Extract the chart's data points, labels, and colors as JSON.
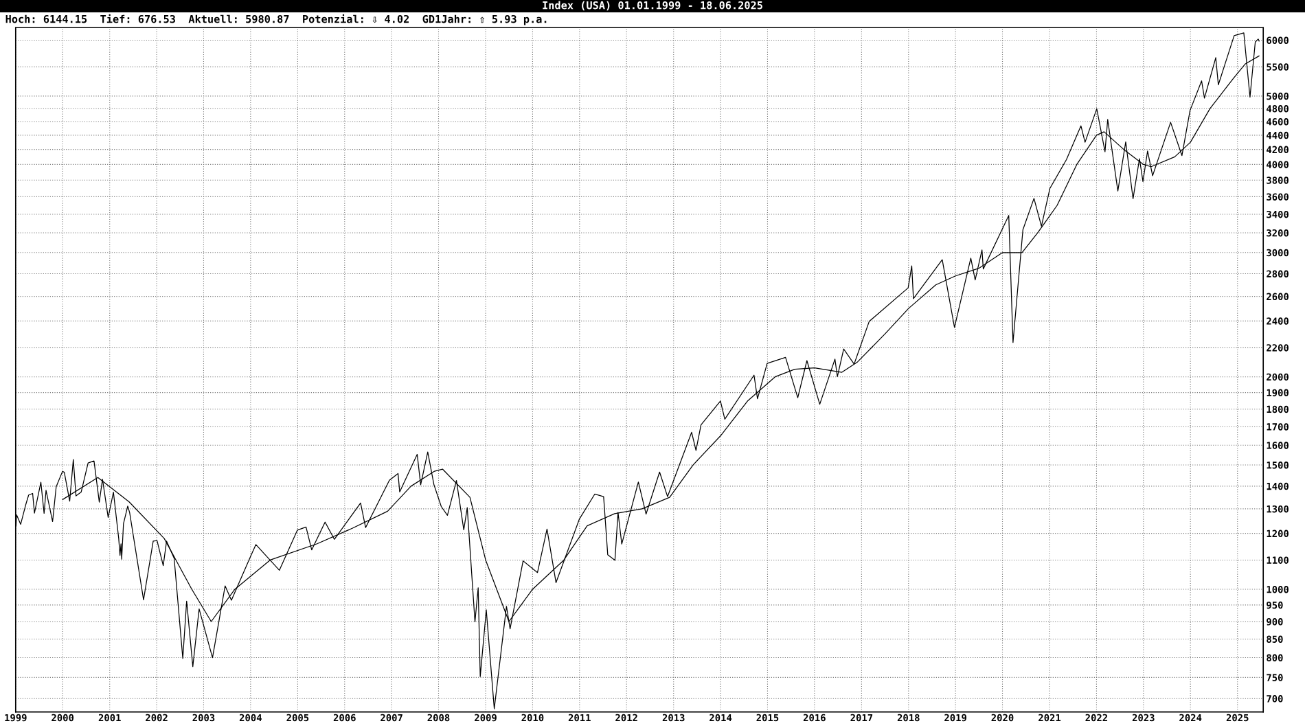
{
  "chart_data": {
    "type": "line",
    "title": "Index (USA) 01.01.1999 - 18.06.2025",
    "annotations": [
      "Hoch: 6144.15  Tief: 676.53  Aktuell: 5980.87  Potenzial: ⇩ 4.02  GD1Jahr: ⇧ 5.93 p.a."
    ],
    "log": "y",
    "grid": true,
    "line_style": "solid",
    "marker": "none",
    "xlim": [
      "1999-01-01",
      "2025-07-20"
    ],
    "xticks": [
      {
        "value": "1999-01-01",
        "label": "1999"
      },
      {
        "value": "2000-01-01",
        "label": "2000"
      },
      {
        "value": "2001-01-01",
        "label": "2001"
      },
      {
        "value": "2002-01-01",
        "label": "2002"
      },
      {
        "value": "2003-01-01",
        "label": "2003"
      },
      {
        "value": "2004-01-01",
        "label": "2004"
      },
      {
        "value": "2005-01-01",
        "label": "2005"
      },
      {
        "value": "2006-01-01",
        "label": "2006"
      },
      {
        "value": "2007-01-01",
        "label": "2007"
      },
      {
        "value": "2008-01-01",
        "label": "2008"
      },
      {
        "value": "2009-01-01",
        "label": "2009"
      },
      {
        "value": "2010-01-01",
        "label": "2010"
      },
      {
        "value": "2011-01-01",
        "label": "2011"
      },
      {
        "value": "2012-01-01",
        "label": "2012"
      },
      {
        "value": "2013-01-01",
        "label": "2013"
      },
      {
        "value": "2014-01-01",
        "label": "2014"
      },
      {
        "value": "2015-01-01",
        "label": "2015"
      },
      {
        "value": "2016-01-01",
        "label": "2016"
      },
      {
        "value": "2017-01-01",
        "label": "2017"
      },
      {
        "value": "2018-01-01",
        "label": "2018"
      },
      {
        "value": "2019-01-01",
        "label": "2019"
      },
      {
        "value": "2020-01-01",
        "label": "2020"
      },
      {
        "value": "2021-01-01",
        "label": "2021"
      },
      {
        "value": "2022-01-01",
        "label": "2022"
      },
      {
        "value": "2023-01-01",
        "label": "2023"
      },
      {
        "value": "2024-01-01",
        "label": "2024"
      },
      {
        "value": "2025-01-01",
        "label": "2025"
      }
    ],
    "ylim": [
      670,
      6250
    ],
    "yticks": [
      700,
      750,
      800,
      850,
      900,
      950,
      1000,
      1100,
      1200,
      1300,
      1400,
      1500,
      1600,
      1700,
      1800,
      1900,
      2000,
      2200,
      2400,
      2600,
      2800,
      3000,
      3200,
      3400,
      3600,
      3800,
      4000,
      4200,
      4400,
      4600,
      4800,
      5000,
      5500,
      6000
    ],
    "series": [
      {
        "color": "#000000",
        "x": [
          "1999-01-04",
          "1999-01-08",
          "1999-02-09",
          "1999-03-19",
          "1999-04-12",
          "1999-05-13",
          "1999-05-27",
          "1999-07-16",
          "1999-08-10",
          "1999-08-25",
          "1999-10-15",
          "1999-11-12",
          "1999-12-31",
          "2000-01-14",
          "2000-02-25",
          "2000-03-24",
          "2000-04-14",
          "2000-05-24",
          "2000-07-17",
          "2000-09-01",
          "2000-10-12",
          "2000-11-06",
          "2000-12-20",
          "2001-01-30",
          "2001-03-12",
          "2001-03-22",
          "2001-03-30",
          "2001-04-04",
          "2001-04-18",
          "2001-05-21",
          "2001-06-05",
          "2001-09-21",
          "2001-12-05",
          "2002-01-04",
          "2002-02-21",
          "2002-03-19",
          "2002-05-17",
          "2002-07-23",
          "2002-08-22",
          "2002-10-09",
          "2002-11-27",
          "2003-03-11",
          "2003-06-17",
          "2003-08-05",
          "2003-12-31",
          "2004-02-11",
          "2004-08-12",
          "2004-12-30",
          "2005-03-07",
          "2005-04-20",
          "2005-08-02",
          "2005-10-13",
          "2006-05-05",
          "2006-06-13",
          "2006-12-15",
          "2007-02-20",
          "2007-03-05",
          "2007-07-19",
          "2007-08-15",
          "2007-10-09",
          "2007-11-26",
          "2008-01-22",
          "2008-03-10",
          "2008-05-19",
          "2008-07-15",
          "2008-08-11",
          "2008-10-10",
          "2008-11-04",
          "2008-11-20",
          "2009-01-06",
          "2009-03-09",
          "2009-06-12",
          "2009-07-10",
          "2009-10-19",
          "2010-02-08",
          "2010-04-23",
          "2010-07-02",
          "2010-12-31",
          "2011-04-29",
          "2011-07-07",
          "2011-08-08",
          "2011-10-03",
          "2011-10-27",
          "2011-11-25",
          "2012-04-02",
          "2012-06-01",
          "2012-09-14",
          "2012-11-15",
          "2013-05-21",
          "2013-06-24",
          "2013-08-02",
          "2013-12-31",
          "2014-02-03",
          "2014-09-18",
          "2014-10-15",
          "2014-12-29",
          "2015-05-21",
          "2015-08-24",
          "2015-11-03",
          "2016-02-11",
          "2016-06-08",
          "2016-06-27",
          "2016-08-15",
          "2016-11-04",
          "2017-03-01",
          "2017-12-29",
          "2018-01-26",
          "2018-02-08",
          "2018-09-20",
          "2018-12-24",
          "2019-04-30",
          "2019-06-03",
          "2019-07-26",
          "2019-08-05",
          "2020-02-19",
          "2020-03-23",
          "2020-06-08",
          "2020-09-02",
          "2020-10-30",
          "2021-01-04",
          "2021-05-12",
          "2021-09-02",
          "2021-10-04",
          "2022-01-03",
          "2022-03-08",
          "2022-03-29",
          "2022-06-16",
          "2022-08-16",
          "2022-10-12",
          "2022-12-01",
          "2022-12-28",
          "2023-02-02",
          "2023-03-13",
          "2023-07-31",
          "2023-10-27",
          "2023-12-29",
          "2024-03-28",
          "2024-04-19",
          "2024-07-16",
          "2024-08-05",
          "2024-12-06",
          "2025-02-19",
          "2025-04-08",
          "2025-05-19",
          "2025-06-11",
          "2025-06-18"
        ],
        "values": [
          1229,
          1275,
          1236,
          1315,
          1360,
          1367,
          1282,
          1418,
          1281,
          1381,
          1247,
          1397,
          1469,
          1465,
          1333,
          1527,
          1356,
          1373,
          1510,
          1520,
          1329,
          1432,
          1264,
          1373,
          1180,
          1117,
          1160,
          1103,
          1238,
          1312,
          1284,
          966,
          1170,
          1172,
          1080,
          1170,
          1106,
          798,
          962,
          777,
          938,
          800,
          1011,
          965,
          1112,
          1157,
          1064,
          1213,
          1225,
          1137,
          1245,
          1177,
          1325,
          1223,
          1427,
          1459,
          1374,
          1553,
          1406,
          1565,
          1407,
          1310,
          1273,
          1426,
          1214,
          1305,
          899,
          1005,
          752,
          935,
          677,
          946,
          879,
          1097,
          1056,
          1217,
          1022,
          1258,
          1364,
          1353,
          1119,
          1099,
          1285,
          1159,
          1419,
          1278,
          1466,
          1353,
          1669,
          1573,
          1710,
          1848,
          1742,
          2011,
          1862,
          2090,
          2131,
          1868,
          2109,
          1829,
          2119,
          2001,
          2190,
          2085,
          2396,
          2674,
          2873,
          2581,
          2931,
          2351,
          2946,
          2744,
          3026,
          2844,
          3386,
          2237,
          3232,
          3580,
          3270,
          3700,
          4063,
          4537,
          4300,
          4797,
          4170,
          4632,
          3667,
          4305,
          3577,
          4076,
          3783,
          4179,
          3855,
          4589,
          4117,
          4770,
          5254,
          4967,
          5667,
          5186,
          6090,
          6144,
          4982,
          5963,
          6022,
          5981
        ]
      },
      {
        "color": "#000000",
        "x": [
          "2000-01-01",
          "2000-10-01",
          "2001-06-01",
          "2002-03-01",
          "2002-10-01",
          "2003-03-01",
          "2003-09-01",
          "2004-06-01",
          "2005-06-01",
          "2006-03-01",
          "2006-12-01",
          "2007-06-01",
          "2007-12-01",
          "2008-02-01",
          "2008-09-01",
          "2009-01-01",
          "2009-07-01",
          "2010-01-01",
          "2010-09-01",
          "2011-03-01",
          "2011-10-01",
          "2012-05-01",
          "2012-12-01",
          "2013-06-01",
          "2014-01-01",
          "2014-08-01",
          "2015-03-01",
          "2015-08-01",
          "2016-01-01",
          "2016-08-01",
          "2016-12-01",
          "2017-07-01",
          "2018-01-01",
          "2018-08-01",
          "2019-01-01",
          "2019-07-01",
          "2020-01-01",
          "2020-06-01",
          "2020-10-01",
          "2021-03-01",
          "2021-08-01",
          "2022-01-01",
          "2022-03-01",
          "2022-08-01",
          "2023-01-01",
          "2023-03-01",
          "2023-09-01",
          "2024-01-01",
          "2024-06-01",
          "2024-12-01",
          "2025-03-01",
          "2025-06-18"
        ],
        "values": [
          1340,
          1440,
          1330,
          1180,
          1000,
          900,
          1000,
          1100,
          1160,
          1220,
          1290,
          1400,
          1470,
          1480,
          1350,
          1100,
          900,
          1000,
          1100,
          1230,
          1280,
          1300,
          1350,
          1500,
          1650,
          1850,
          2000,
          2050,
          2060,
          2030,
          2100,
          2300,
          2500,
          2700,
          2780,
          2850,
          3000,
          3000,
          3200,
          3500,
          4000,
          4400,
          4450,
          4200,
          4000,
          3970,
          4100,
          4300,
          4800,
          5300,
          5550,
          5700
        ]
      }
    ]
  }
}
